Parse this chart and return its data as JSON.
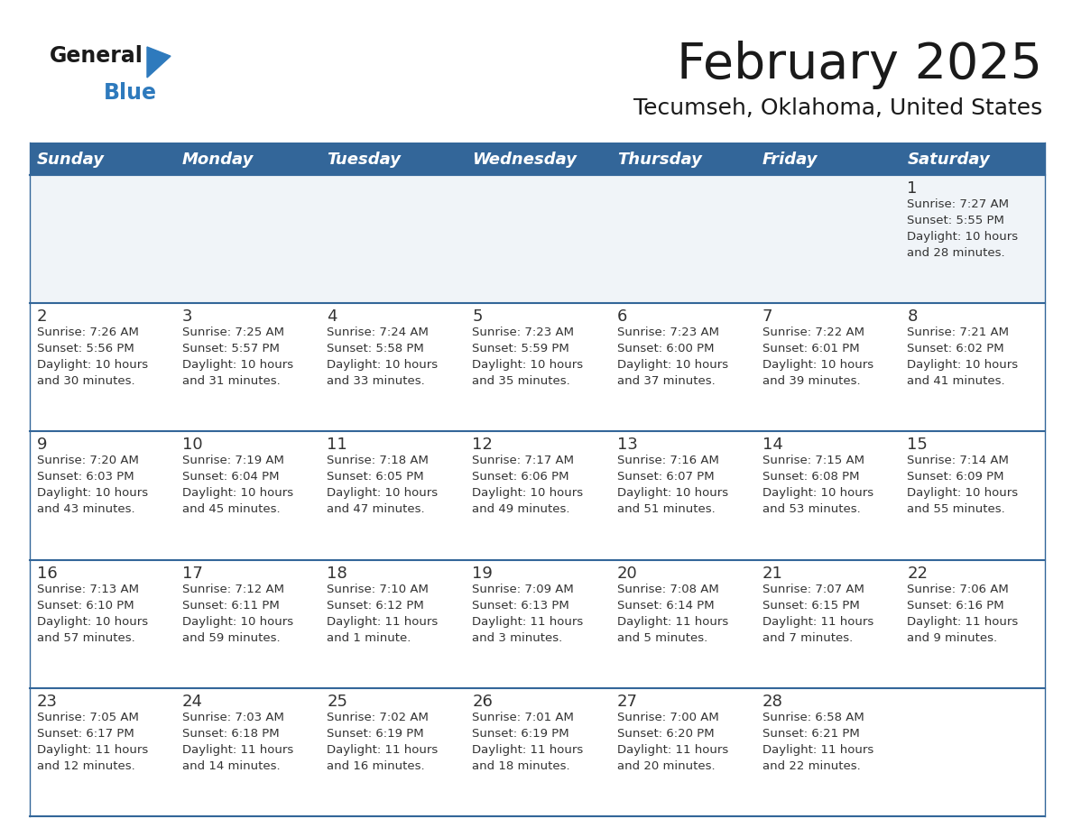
{
  "title": "February 2025",
  "subtitle": "Tecumseh, Oklahoma, United States",
  "header_bg": "#336699",
  "header_text_color": "#ffffff",
  "row_bg": "#ffffff",
  "first_row_bg": "#f0f4f8",
  "cell_border_color": "#336699",
  "text_color": "#333333",
  "day_num_color": "#333333",
  "logo_text_color": "#1a1a1a",
  "logo_blue_color": "#2e7abd",
  "logo_triangle_color": "#2e7abd",
  "days_of_week": [
    "Sunday",
    "Monday",
    "Tuesday",
    "Wednesday",
    "Thursday",
    "Friday",
    "Saturday"
  ],
  "weeks": [
    [
      {
        "day": "",
        "info": ""
      },
      {
        "day": "",
        "info": ""
      },
      {
        "day": "",
        "info": ""
      },
      {
        "day": "",
        "info": ""
      },
      {
        "day": "",
        "info": ""
      },
      {
        "day": "",
        "info": ""
      },
      {
        "day": "1",
        "info": "Sunrise: 7:27 AM\nSunset: 5:55 PM\nDaylight: 10 hours\nand 28 minutes."
      }
    ],
    [
      {
        "day": "2",
        "info": "Sunrise: 7:26 AM\nSunset: 5:56 PM\nDaylight: 10 hours\nand 30 minutes."
      },
      {
        "day": "3",
        "info": "Sunrise: 7:25 AM\nSunset: 5:57 PM\nDaylight: 10 hours\nand 31 minutes."
      },
      {
        "day": "4",
        "info": "Sunrise: 7:24 AM\nSunset: 5:58 PM\nDaylight: 10 hours\nand 33 minutes."
      },
      {
        "day": "5",
        "info": "Sunrise: 7:23 AM\nSunset: 5:59 PM\nDaylight: 10 hours\nand 35 minutes."
      },
      {
        "day": "6",
        "info": "Sunrise: 7:23 AM\nSunset: 6:00 PM\nDaylight: 10 hours\nand 37 minutes."
      },
      {
        "day": "7",
        "info": "Sunrise: 7:22 AM\nSunset: 6:01 PM\nDaylight: 10 hours\nand 39 minutes."
      },
      {
        "day": "8",
        "info": "Sunrise: 7:21 AM\nSunset: 6:02 PM\nDaylight: 10 hours\nand 41 minutes."
      }
    ],
    [
      {
        "day": "9",
        "info": "Sunrise: 7:20 AM\nSunset: 6:03 PM\nDaylight: 10 hours\nand 43 minutes."
      },
      {
        "day": "10",
        "info": "Sunrise: 7:19 AM\nSunset: 6:04 PM\nDaylight: 10 hours\nand 45 minutes."
      },
      {
        "day": "11",
        "info": "Sunrise: 7:18 AM\nSunset: 6:05 PM\nDaylight: 10 hours\nand 47 minutes."
      },
      {
        "day": "12",
        "info": "Sunrise: 7:17 AM\nSunset: 6:06 PM\nDaylight: 10 hours\nand 49 minutes."
      },
      {
        "day": "13",
        "info": "Sunrise: 7:16 AM\nSunset: 6:07 PM\nDaylight: 10 hours\nand 51 minutes."
      },
      {
        "day": "14",
        "info": "Sunrise: 7:15 AM\nSunset: 6:08 PM\nDaylight: 10 hours\nand 53 minutes."
      },
      {
        "day": "15",
        "info": "Sunrise: 7:14 AM\nSunset: 6:09 PM\nDaylight: 10 hours\nand 55 minutes."
      }
    ],
    [
      {
        "day": "16",
        "info": "Sunrise: 7:13 AM\nSunset: 6:10 PM\nDaylight: 10 hours\nand 57 minutes."
      },
      {
        "day": "17",
        "info": "Sunrise: 7:12 AM\nSunset: 6:11 PM\nDaylight: 10 hours\nand 59 minutes."
      },
      {
        "day": "18",
        "info": "Sunrise: 7:10 AM\nSunset: 6:12 PM\nDaylight: 11 hours\nand 1 minute."
      },
      {
        "day": "19",
        "info": "Sunrise: 7:09 AM\nSunset: 6:13 PM\nDaylight: 11 hours\nand 3 minutes."
      },
      {
        "day": "20",
        "info": "Sunrise: 7:08 AM\nSunset: 6:14 PM\nDaylight: 11 hours\nand 5 minutes."
      },
      {
        "day": "21",
        "info": "Sunrise: 7:07 AM\nSunset: 6:15 PM\nDaylight: 11 hours\nand 7 minutes."
      },
      {
        "day": "22",
        "info": "Sunrise: 7:06 AM\nSunset: 6:16 PM\nDaylight: 11 hours\nand 9 minutes."
      }
    ],
    [
      {
        "day": "23",
        "info": "Sunrise: 7:05 AM\nSunset: 6:17 PM\nDaylight: 11 hours\nand 12 minutes."
      },
      {
        "day": "24",
        "info": "Sunrise: 7:03 AM\nSunset: 6:18 PM\nDaylight: 11 hours\nand 14 minutes."
      },
      {
        "day": "25",
        "info": "Sunrise: 7:02 AM\nSunset: 6:19 PM\nDaylight: 11 hours\nand 16 minutes."
      },
      {
        "day": "26",
        "info": "Sunrise: 7:01 AM\nSunset: 6:19 PM\nDaylight: 11 hours\nand 18 minutes."
      },
      {
        "day": "27",
        "info": "Sunrise: 7:00 AM\nSunset: 6:20 PM\nDaylight: 11 hours\nand 20 minutes."
      },
      {
        "day": "28",
        "info": "Sunrise: 6:58 AM\nSunset: 6:21 PM\nDaylight: 11 hours\nand 22 minutes."
      },
      {
        "day": "",
        "info": ""
      }
    ]
  ],
  "title_fontsize": 40,
  "subtitle_fontsize": 18,
  "header_fontsize": 13,
  "day_num_fontsize": 13,
  "info_fontsize": 9.5
}
